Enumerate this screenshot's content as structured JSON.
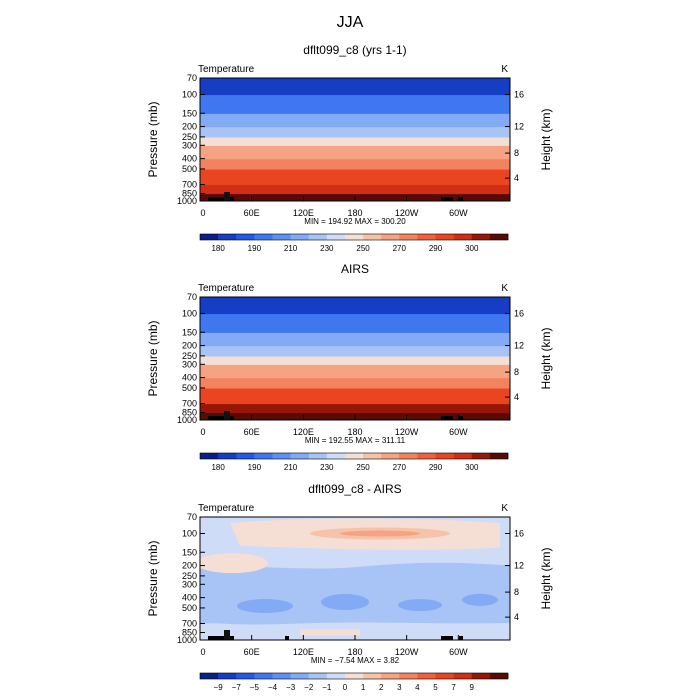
{
  "page_title": "JJA",
  "chart_data": [
    {
      "type": "heatmap",
      "title": "dflt099_c8 (yrs 1-1)",
      "subtitle_left": "Temperature",
      "subtitle_right": "K",
      "ylabel": "Pressure (mb)",
      "ylabel_right": "Height (km)",
      "x_ticks": [
        "0",
        "60E",
        "120E",
        "180",
        "120W",
        "60W"
      ],
      "y_ticks": [
        "70",
        "100",
        "150",
        "200",
        "250",
        "300",
        "400",
        "500",
        "700",
        "850",
        "1000"
      ],
      "y_ticks_right": [
        "16",
        "12",
        "8",
        "4"
      ],
      "stats": "MIN = 194.92   MAX = 300.20",
      "colorbar_labels": [
        "180",
        "190",
        "210",
        "230",
        "250",
        "270",
        "290",
        "300"
      ],
      "colorbar_colors": [
        "#0d1f86",
        "#163ec4",
        "#2458e6",
        "#3f77f0",
        "#5e8ff3",
        "#82aaf5",
        "#a8c4f7",
        "#cfdcf8",
        "#f5ded3",
        "#f6c3aa",
        "#f5a383",
        "#f3825f",
        "#ef603b",
        "#e84520",
        "#cf2f12",
        "#961708",
        "#5a0a04"
      ],
      "band_pressures": [
        1000,
        850,
        700,
        500,
        400,
        300,
        250,
        200,
        150,
        100,
        70
      ],
      "band_levels": [
        16,
        14,
        13,
        11,
        10,
        8,
        6,
        5,
        3,
        1,
        1
      ]
    },
    {
      "type": "heatmap",
      "title": "AIRS",
      "subtitle_left": "Temperature",
      "subtitle_right": "K",
      "ylabel": "Pressure (mb)",
      "ylabel_right": "Height (km)",
      "x_ticks": [
        "0",
        "60E",
        "120E",
        "180",
        "120W",
        "60W"
      ],
      "y_ticks": [
        "70",
        "100",
        "150",
        "200",
        "250",
        "300",
        "400",
        "500",
        "700",
        "850",
        "1000"
      ],
      "y_ticks_right": [
        "16",
        "12",
        "8",
        "4"
      ],
      "stats": "MIN = 192.55   MAX = 311.11",
      "colorbar_labels": [
        "180",
        "190",
        "210",
        "230",
        "250",
        "270",
        "290",
        "300"
      ],
      "colorbar_colors": [
        "#0d1f86",
        "#163ec4",
        "#2458e6",
        "#3f77f0",
        "#5e8ff3",
        "#82aaf5",
        "#a8c4f7",
        "#cfdcf8",
        "#f5ded3",
        "#f6c3aa",
        "#f5a383",
        "#f3825f",
        "#ef603b",
        "#e84520",
        "#cf2f12",
        "#961708",
        "#5a0a04"
      ],
      "band_pressures": [
        1000,
        850,
        700,
        500,
        400,
        300,
        250,
        200,
        150,
        100,
        70
      ],
      "band_levels": [
        16,
        15,
        13,
        11,
        10,
        8,
        6,
        5,
        3,
        1,
        1
      ]
    },
    {
      "type": "heatmap",
      "title": "dflt099_c8 - AIRS",
      "subtitle_left": "Temperature",
      "subtitle_right": "K",
      "ylabel": "Pressure (mb)",
      "ylabel_right": "Height (km)",
      "x_ticks": [
        "0",
        "60E",
        "120E",
        "180",
        "120W",
        "60W"
      ],
      "y_ticks": [
        "70",
        "100",
        "150",
        "200",
        "250",
        "300",
        "400",
        "500",
        "700",
        "850",
        "1000"
      ],
      "y_ticks_right": [
        "16",
        "12",
        "8",
        "4"
      ],
      "stats": "MIN = −7.54   MAX =      3.82",
      "colorbar_labels": [
        "−9",
        "−7",
        "−5",
        "−4",
        "−3",
        "−2",
        "−1",
        "0",
        "1",
        "2",
        "3",
        "4",
        "5",
        "7",
        "9"
      ],
      "colorbar_colors": [
        "#0d1f86",
        "#163ec4",
        "#2458e6",
        "#3f77f0",
        "#5e8ff3",
        "#82aaf5",
        "#a8c4f7",
        "#cfdcf8",
        "#f5ded3",
        "#f6c3aa",
        "#f5a383",
        "#f3825f",
        "#ef603b",
        "#e84520",
        "#cf2f12",
        "#961708",
        "#5a0a04"
      ]
    }
  ]
}
